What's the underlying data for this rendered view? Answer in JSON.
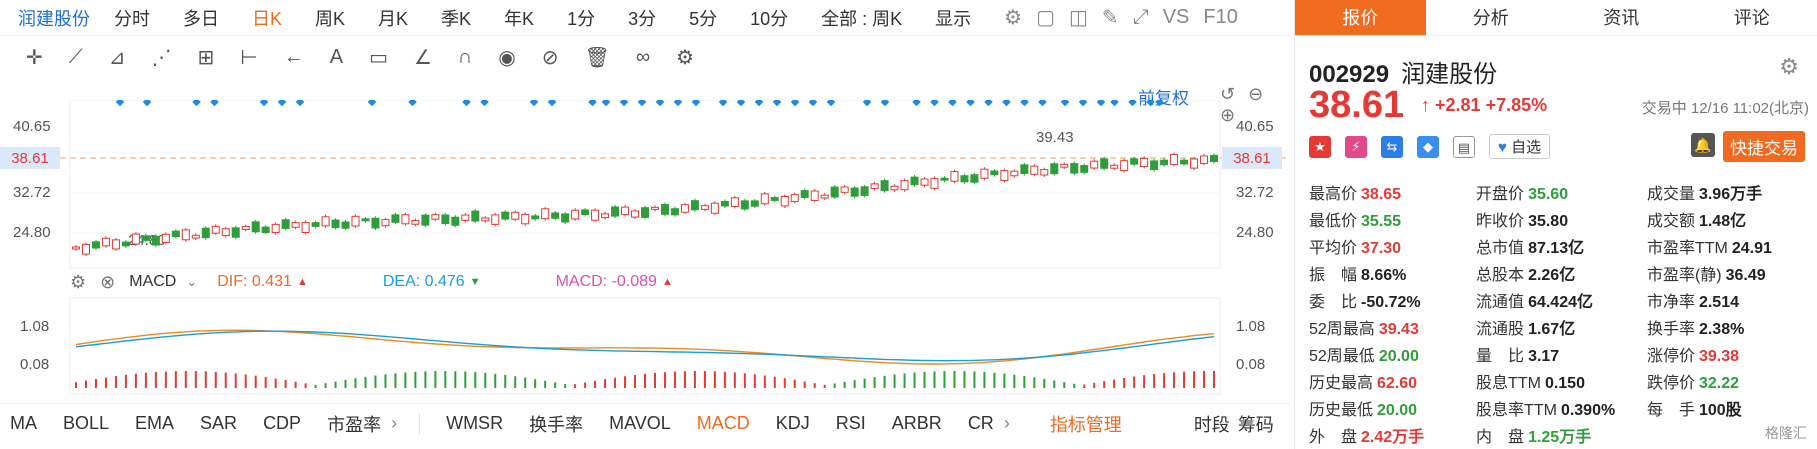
{
  "toolbar": {
    "stock_name": "润建股份",
    "periods": [
      "分时",
      "多日",
      "日K",
      "周K",
      "月K",
      "季K",
      "年K",
      "1分",
      "3分",
      "5分",
      "10分"
    ],
    "active_period": "日K",
    "range_select": "全部 : 周K",
    "display_label": "显示",
    "vs_label": "VS",
    "f10_label": "F10"
  },
  "chart": {
    "restore_label": "前复权",
    "left_axis": [
      "40.65",
      "38.61",
      "32.72",
      "24.80"
    ],
    "right_axis": [
      "40.65",
      "38.61",
      "32.72",
      "24.80"
    ],
    "high_marker": "39.43",
    "low_marker": "24.80",
    "current_price_line": "38.61"
  },
  "macd": {
    "name": "MACD",
    "dif": "DIF: 0.431",
    "dea": "DEA: 0.476",
    "macd": "MACD: -0.089",
    "left_axis": [
      "1.08",
      "0.08"
    ],
    "right_axis": [
      "1.08",
      "0.08"
    ]
  },
  "indicators": {
    "items": [
      "MA",
      "BOLL",
      "EMA",
      "SAR",
      "CDP",
      "市盈率",
      "WMSR",
      "换手率",
      "MAVOL",
      "MACD",
      "KDJ",
      "RSI",
      "ARBR",
      "CR"
    ],
    "active": "MACD",
    "manage_label": "指标管理",
    "timeshare_label": "时段",
    "chip_label": "筹码"
  },
  "panel": {
    "tabs": [
      "报价",
      "分析",
      "资讯",
      "评论"
    ],
    "code": "002929",
    "name": "润建股份",
    "price": "38.61",
    "change": "+2.81",
    "change_pct": "+7.85%",
    "status": "交易中 12/16 11:02(北京)",
    "fav_label": "自选",
    "trade_label": "快捷交易",
    "quotes": [
      [
        {
          "l": "最高价",
          "v": "38.65",
          "c": "r"
        },
        {
          "l": "开盘价",
          "v": "35.60",
          "c": "g"
        },
        {
          "l": "成交量",
          "v": "3.96万手",
          "c": ""
        }
      ],
      [
        {
          "l": "最低价",
          "v": "35.55",
          "c": "g"
        },
        {
          "l": "昨收价",
          "v": "35.80",
          "c": ""
        },
        {
          "l": "成交额",
          "v": "1.48亿",
          "c": ""
        }
      ],
      [
        {
          "l": "平均价",
          "v": "37.30",
          "c": "r"
        },
        {
          "l": "总市值",
          "v": "87.13亿",
          "c": ""
        },
        {
          "l": "市盈率TTM",
          "v": "24.91",
          "c": ""
        }
      ],
      [
        {
          "l": "振　幅",
          "v": "8.66%",
          "c": ""
        },
        {
          "l": "总股本",
          "v": "2.26亿",
          "c": ""
        },
        {
          "l": "市盈率(静)",
          "v": "36.49",
          "c": ""
        }
      ],
      [
        {
          "l": "委　比",
          "v": "-50.72%",
          "c": ""
        },
        {
          "l": "流通值",
          "v": "64.424亿",
          "c": ""
        },
        {
          "l": "市净率",
          "v": "2.514",
          "c": ""
        }
      ],
      [
        {
          "l": "52周最高",
          "v": "39.43",
          "c": "r"
        },
        {
          "l": "流通股",
          "v": "1.67亿",
          "c": ""
        },
        {
          "l": "换手率",
          "v": "2.38%",
          "c": ""
        }
      ],
      [
        {
          "l": "52周最低",
          "v": "20.00",
          "c": "g"
        },
        {
          "l": "量　比",
          "v": "3.17",
          "c": ""
        },
        {
          "l": "涨停价",
          "v": "39.38",
          "c": "r"
        }
      ],
      [
        {
          "l": "历史最高",
          "v": "62.60",
          "c": "r"
        },
        {
          "l": "股息TTM",
          "v": "0.150",
          "c": ""
        },
        {
          "l": "跌停价",
          "v": "32.22",
          "c": "g"
        }
      ],
      [
        {
          "l": "历史最低",
          "v": "20.00",
          "c": "g"
        },
        {
          "l": "股息率TTM",
          "v": "0.390%",
          "c": ""
        },
        {
          "l": "每　手",
          "v": "100股",
          "c": ""
        }
      ],
      [
        {
          "l": "外　盘",
          "v": "2.42万手",
          "c": "r"
        },
        {
          "l": "内　盘",
          "v": "1.25万手",
          "c": "g"
        },
        {
          "l": "",
          "v": "",
          "c": ""
        }
      ]
    ],
    "watermark": "格隆汇"
  },
  "colors": {
    "up": "#e53935",
    "down": "#2e9e3a",
    "accent": "#f06a1f",
    "link": "#1e6fd6"
  }
}
